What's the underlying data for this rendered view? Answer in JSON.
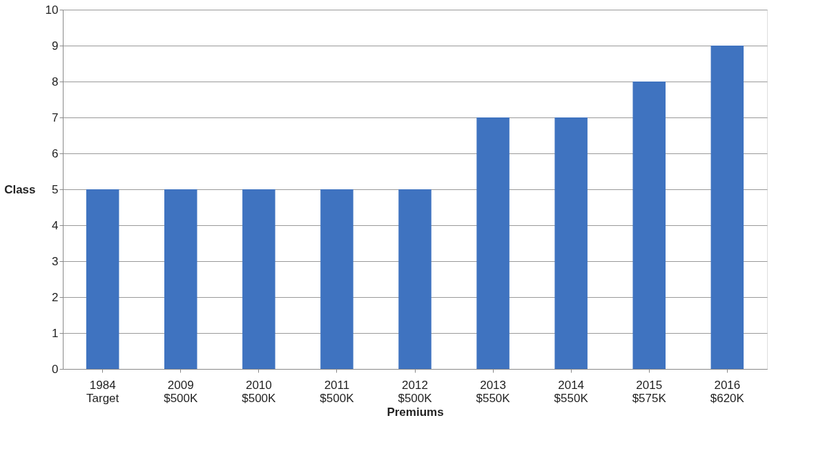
{
  "chart_data": {
    "type": "bar",
    "categories": [
      "1984\nTarget",
      "2009\n$500K",
      "2010\n$500K",
      "2011\n$500K",
      "2012\n$500K",
      "2013\n$550K",
      "2014\n$550K",
      "2015\n$575K",
      "2016\n$620K"
    ],
    "values": [
      5,
      5,
      5,
      5,
      5,
      7,
      7,
      8,
      9
    ],
    "color": "#3f73c0",
    "xlabel": "Premiums",
    "ylabel": "Class",
    "ylim": [
      0,
      10
    ],
    "yticks": [
      0,
      1,
      2,
      3,
      4,
      5,
      6,
      7,
      8,
      9,
      10
    ],
    "grid": "y"
  }
}
